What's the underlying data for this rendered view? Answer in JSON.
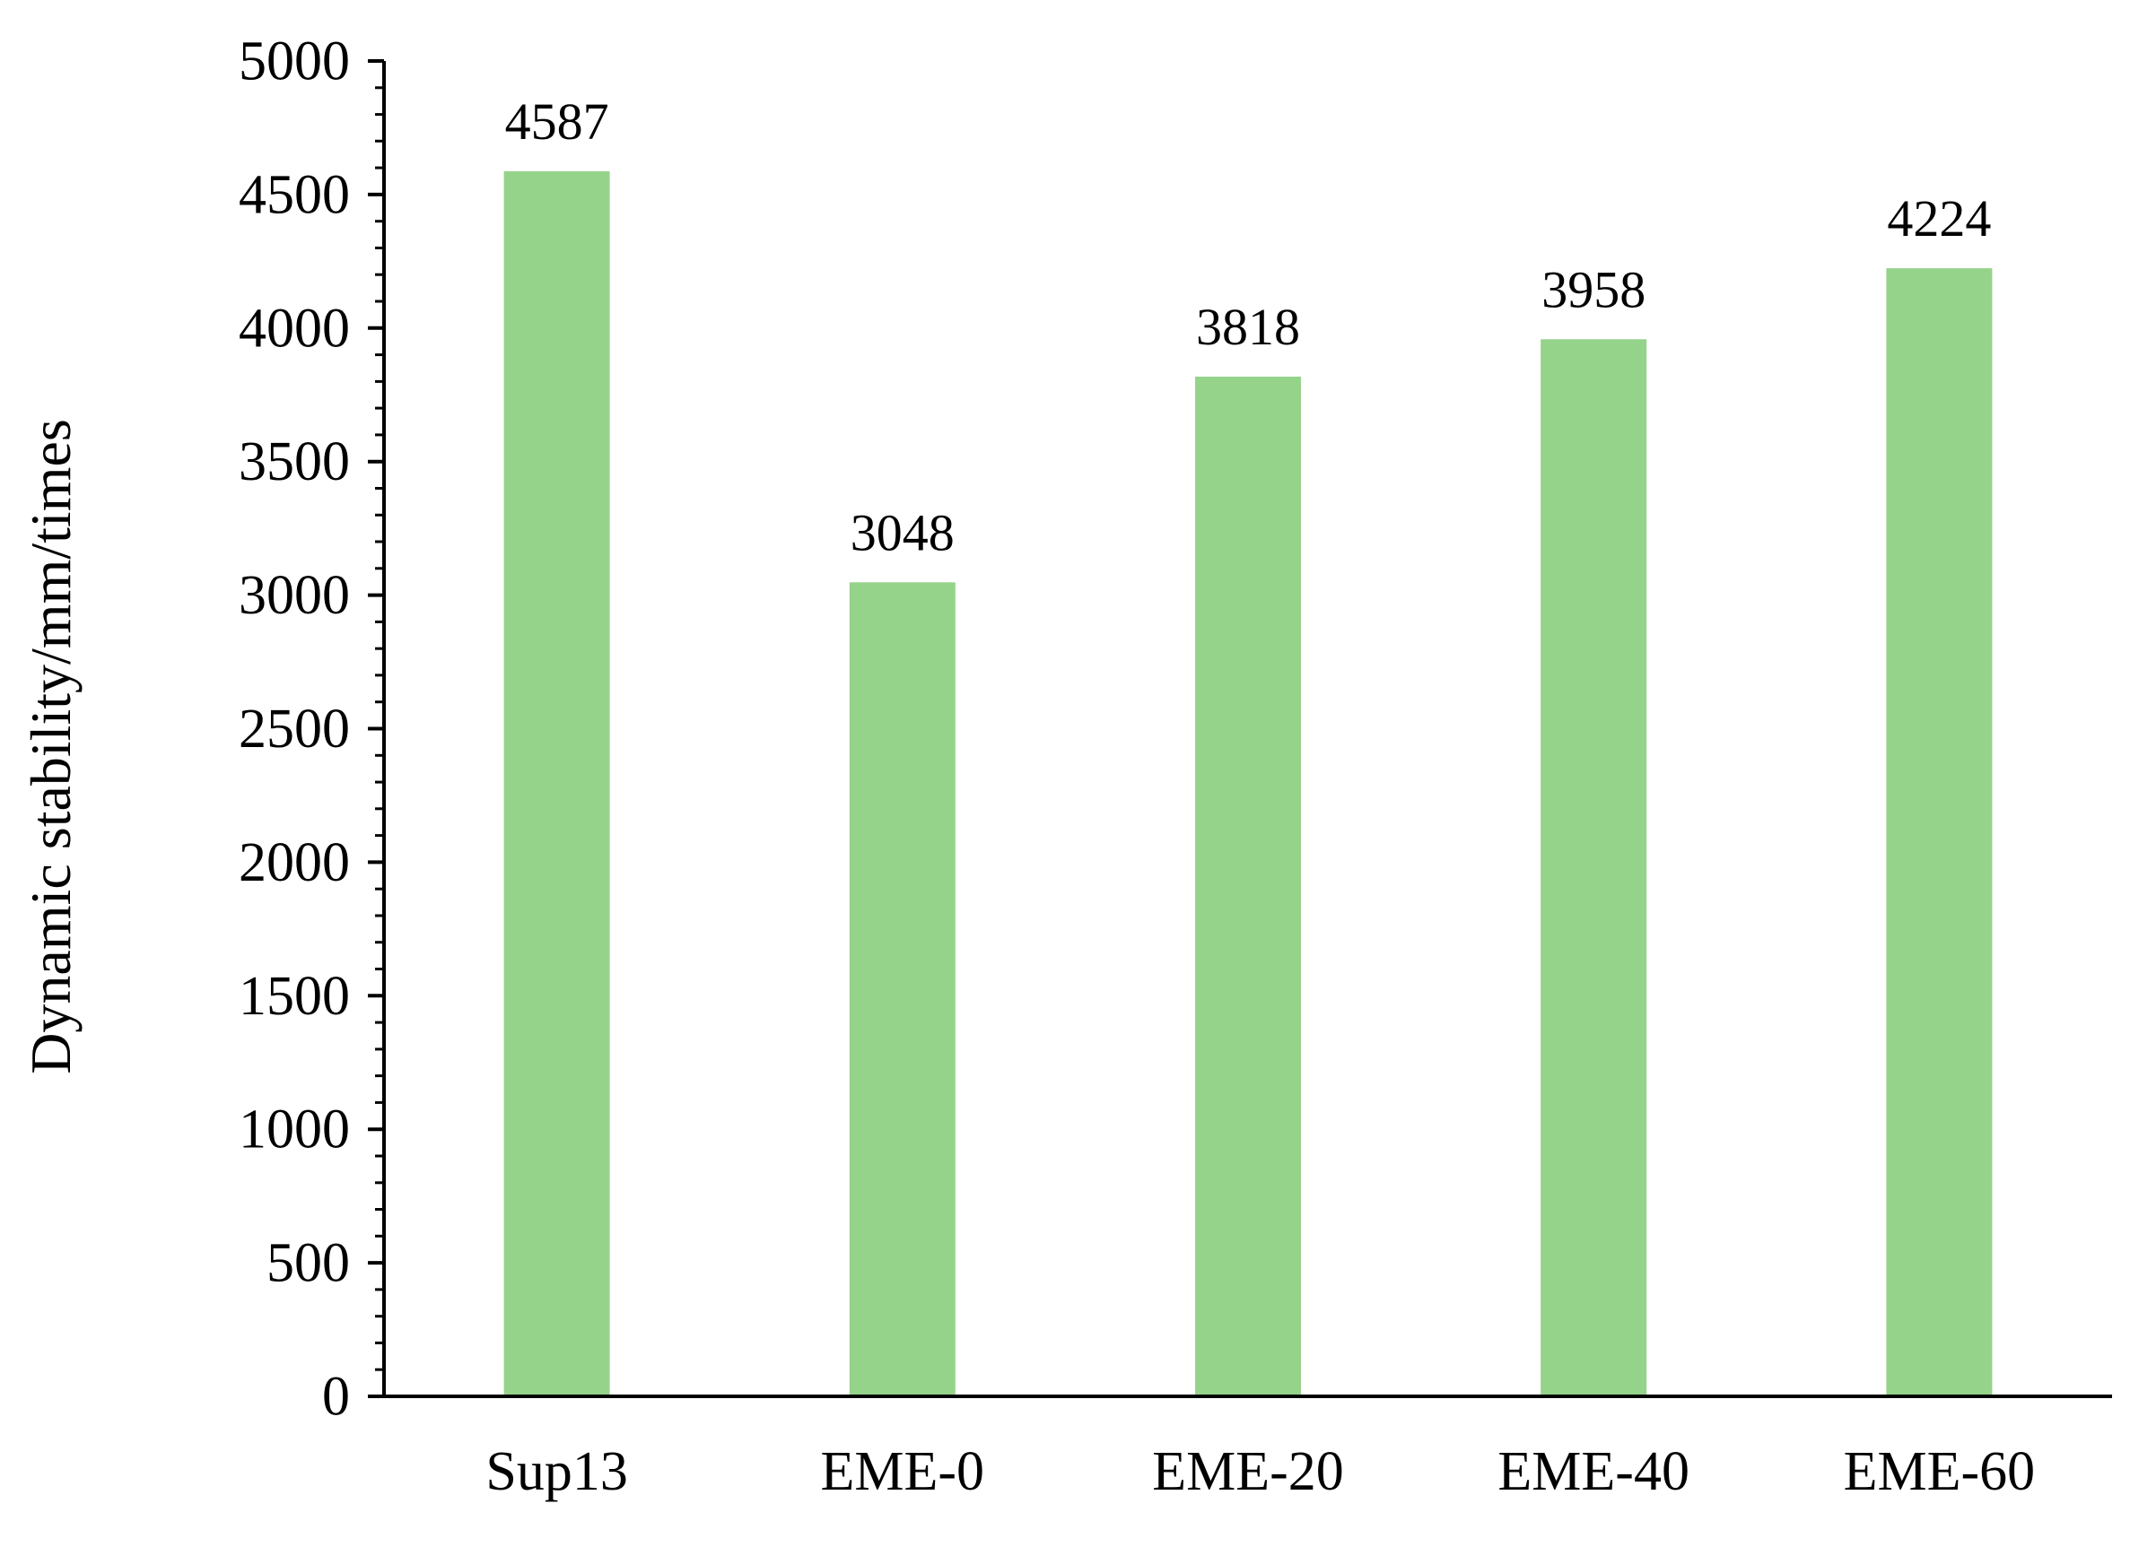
{
  "chart_data": {
    "type": "bar",
    "categories": [
      "Sup13",
      "EME-0",
      "EME-20",
      "EME-40",
      "EME-60"
    ],
    "values": [
      4587,
      3048,
      3818,
      3958,
      4224
    ],
    "data_labels": [
      "4587",
      "3048",
      "3818",
      "3958",
      "4224"
    ],
    "title": "",
    "xlabel": "",
    "ylabel": "Dynamic stability/mm/times",
    "ylim": [
      0,
      5000
    ],
    "yticks": [
      0,
      500,
      1000,
      1500,
      2000,
      2500,
      3000,
      3500,
      4000,
      4500,
      5000
    ],
    "ytick_labels": [
      "0",
      "500",
      "1000",
      "1500",
      "2000",
      "2500",
      "3000",
      "3500",
      "4000",
      "4500",
      "5000"
    ],
    "minor_ticks_per_major": 5,
    "grid": false,
    "legend": "none",
    "colors": {
      "bar": "#95d38a",
      "axis": "#000000",
      "text": "#000000"
    }
  }
}
